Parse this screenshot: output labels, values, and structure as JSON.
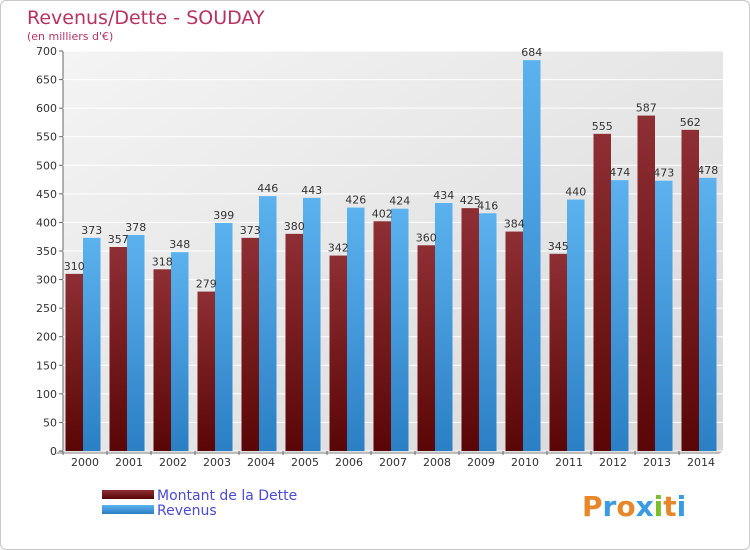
{
  "chart_data": {
    "type": "bar",
    "title": "Revenus/Dette - SOUDAY",
    "subtitle": "(en milliers d'€)",
    "categories": [
      "2000",
      "2001",
      "2002",
      "2003",
      "2004",
      "2005",
      "2006",
      "2007",
      "2008",
      "2009",
      "2010",
      "2011",
      "2012",
      "2013",
      "2014"
    ],
    "series": [
      {
        "name": "Montant de la Dette",
        "color": "#7a1f22",
        "values": [
          310,
          357,
          318,
          279,
          373,
          380,
          342,
          402,
          360,
          425,
          384,
          345,
          555,
          587,
          562
        ]
      },
      {
        "name": "Revenus",
        "color": "#4aa3e8",
        "values": [
          373,
          378,
          348,
          399,
          446,
          443,
          426,
          424,
          434,
          416,
          684,
          440,
          474,
          473,
          478
        ]
      }
    ],
    "ylim": [
      0,
      700
    ],
    "yticks": [
      0,
      50,
      100,
      150,
      200,
      250,
      300,
      350,
      400,
      450,
      500,
      550,
      600,
      650,
      700
    ],
    "grid": true,
    "legend_position": "bottom-left"
  },
  "logo": {
    "letters": [
      "P",
      "r",
      "o",
      "x",
      "i",
      "t",
      "i"
    ],
    "colors": [
      "#e8872a",
      "#3b9be0",
      "#e8872a",
      "#3b9be0",
      "#7cbf2e",
      "#e8872a",
      "#3b9be0"
    ]
  }
}
